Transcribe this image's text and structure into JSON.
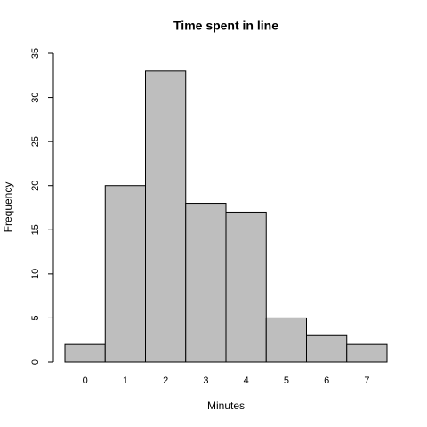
{
  "chart_data": {
    "type": "bar",
    "title": "Time spent in line",
    "x_label": "Minutes",
    "y_label": "Frequency",
    "categories": [
      "0",
      "1",
      "2",
      "3",
      "4",
      "5",
      "6",
      "7"
    ],
    "values": [
      2,
      20,
      33,
      18,
      17,
      5,
      3,
      2
    ],
    "color": "#bebebe",
    "ylim": [
      0,
      35
    ],
    "yticks": [
      0,
      5,
      10,
      15,
      20,
      25,
      30,
      35
    ],
    "grid": false
  }
}
